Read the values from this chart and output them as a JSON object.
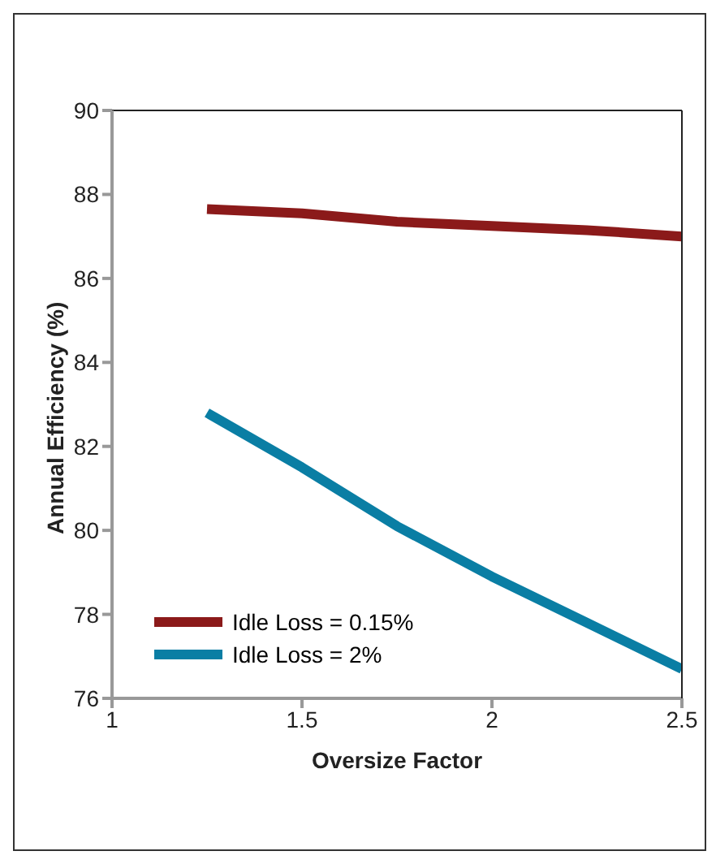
{
  "chart_data": {
    "type": "line",
    "xlabel": "Oversize Factor",
    "ylabel": "Annual Efficiency (%)",
    "xlim": [
      1,
      2.5
    ],
    "xticks": [
      1,
      1.5,
      2,
      2.5
    ],
    "ylim": [
      76,
      90
    ],
    "yticks": [
      76,
      78,
      80,
      82,
      84,
      86,
      88,
      90
    ],
    "grid": false,
    "legend": "bottom left",
    "marker": "none",
    "line_style": "solid",
    "series": [
      {
        "name": "Idle Loss = 0.15%",
        "color": "#8b1a1a",
        "x": [
          1.25,
          1.5,
          1.75,
          2,
          2.25,
          2.5
        ],
        "values": [
          87.65,
          87.55,
          87.35,
          87.25,
          87.15,
          87.0
        ]
      },
      {
        "name": "Idle Loss = 2%",
        "color": "#0a7ea4",
        "x": [
          1.25,
          1.5,
          1.75,
          2,
          2.25,
          2.5
        ],
        "values": [
          82.8,
          81.5,
          80.1,
          78.9,
          77.8,
          76.7
        ]
      }
    ]
  }
}
